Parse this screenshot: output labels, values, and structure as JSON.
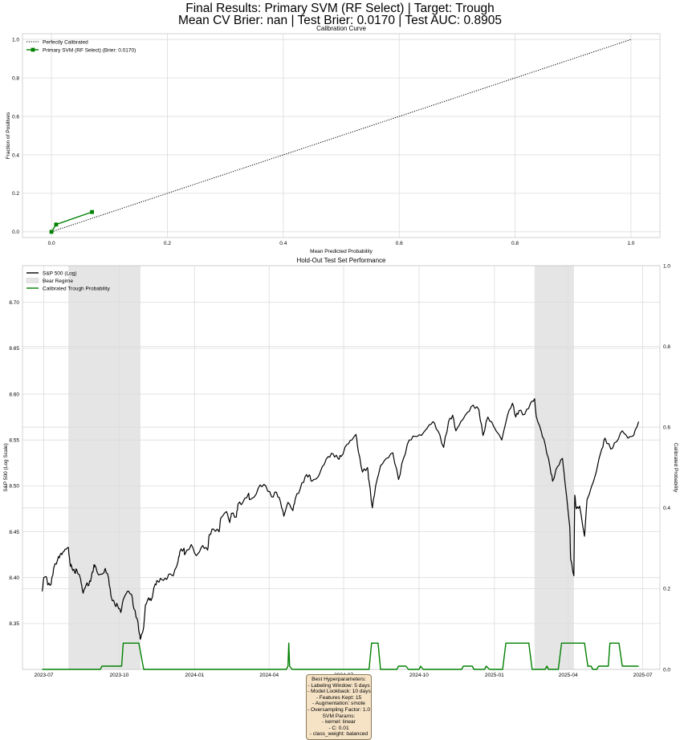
{
  "suptitle": {
    "line1": "Final Results: Primary SVM (RF Select) | Target: Trough",
    "line2": "Mean CV Brier: nan | Test Brier: 0.0170 | Test AUC: 0.8905"
  },
  "colors": {
    "green": "#008000",
    "bear": "#e5e5e5",
    "grid": "#dcdcdc",
    "box": "#f6e3c6"
  },
  "hyperparams": [
    "Best Hyperparameters:",
    "- Labeling Window: 5 days",
    "- Model Lookback: 10 days",
    "- Features Kept: 15",
    "- Augmentation: smote",
    "- Oversampling Factor: 1.0",
    "SVM Params:",
    "- kernel: linear",
    "- C: 0.01",
    "- class_weight: balanced"
  ],
  "chart_data": [
    {
      "type": "line",
      "title": "Calibration Curve",
      "xlabel": "Mean Predicted Probability",
      "ylabel": "Fraction of Positives",
      "xlim": [
        -0.05,
        1.05
      ],
      "ylim": [
        -0.03,
        1.03
      ],
      "xticks": [
        "0.0",
        "0.2",
        "0.4",
        "0.6",
        "0.8",
        "1.0"
      ],
      "yticks": [
        "0.0",
        "0.2",
        "0.4",
        "0.6",
        "0.8",
        "1.0"
      ],
      "grid": true,
      "legend_loc": "upper-left",
      "series": [
        {
          "name": "Perfectly Calibrated",
          "style": "dotted",
          "color": "#000000",
          "x": [
            0,
            1
          ],
          "y": [
            0,
            1
          ]
        },
        {
          "name": "Primary SVM (RF Select) (Brier: 0.0170)",
          "style": "solid-square",
          "color": "#008000",
          "x": [
            0.0,
            0.008,
            0.07
          ],
          "y": [
            0.0,
            0.038,
            0.103
          ]
        }
      ]
    },
    {
      "type": "line",
      "title": "Hold-Out Test Set Performance",
      "ylabel": "S&P 500 (Log Scale)",
      "y2label": "Calibrated Probability",
      "ylim": [
        8.3,
        8.74
      ],
      "y2lim": [
        0,
        1
      ],
      "yticks": [
        "8.35",
        "8.40",
        "8.45",
        "8.50",
        "8.55",
        "8.60",
        "8.65",
        "8.70"
      ],
      "y2ticks": [
        "0.0",
        "0.2",
        "0.4",
        "0.6",
        "0.8",
        "1.0"
      ],
      "xticks": [
        "2023-07",
        "2023-10",
        "2024-01",
        "2024-04",
        "2024-07",
        "2024-10",
        "2025-01",
        "2025-04",
        "2025-07"
      ],
      "grid": true,
      "legend_loc": "upper-left",
      "legend": [
        {
          "name": "S&P 500 (Log)",
          "kind": "line",
          "color": "#000000"
        },
        {
          "name": "Bear Regime",
          "kind": "patch",
          "color": "#e5e5e5"
        },
        {
          "name": "Calibrated Trough Probability",
          "kind": "line",
          "color": "#008000"
        }
      ],
      "bear_regimes": [
        [
          "2023-07-31",
          "2023-10-27"
        ],
        [
          "2025-02-19",
          "2025-04-08"
        ]
      ],
      "sp500_log": [
        [
          "2023-06-29",
          8.385
        ],
        [
          "2023-07-01",
          8.4
        ],
        [
          "2023-07-04",
          8.401
        ],
        [
          "2023-07-06",
          8.392
        ],
        [
          "2023-07-10",
          8.393
        ],
        [
          "2023-07-13",
          8.41
        ],
        [
          "2023-07-18",
          8.42
        ],
        [
          "2023-07-21",
          8.425
        ],
        [
          "2023-07-24",
          8.427
        ],
        [
          "2023-07-27",
          8.431
        ],
        [
          "2023-07-31",
          8.433
        ],
        [
          "2023-08-02",
          8.415
        ],
        [
          "2023-08-04",
          8.412
        ],
        [
          "2023-08-08",
          8.405
        ],
        [
          "2023-08-10",
          8.409
        ],
        [
          "2023-08-15",
          8.398
        ],
        [
          "2023-08-17",
          8.387
        ],
        [
          "2023-08-18",
          8.383
        ],
        [
          "2023-08-22",
          8.393
        ],
        [
          "2023-08-25",
          8.392
        ],
        [
          "2023-08-28",
          8.4
        ],
        [
          "2023-08-31",
          8.412
        ],
        [
          "2023-09-01",
          8.414
        ],
        [
          "2023-09-06",
          8.403
        ],
        [
          "2023-09-12",
          8.405
        ],
        [
          "2023-09-14",
          8.41
        ],
        [
          "2023-09-18",
          8.4
        ],
        [
          "2023-09-21",
          8.38
        ],
        [
          "2023-09-26",
          8.37
        ],
        [
          "2023-09-29",
          8.37
        ],
        [
          "2023-10-03",
          8.362
        ],
        [
          "2023-10-06",
          8.376
        ],
        [
          "2023-10-11",
          8.385
        ],
        [
          "2023-10-16",
          8.382
        ],
        [
          "2023-10-19",
          8.366
        ],
        [
          "2023-10-23",
          8.355
        ],
        [
          "2023-10-26",
          8.338
        ],
        [
          "2023-10-27",
          8.333
        ],
        [
          "2023-10-31",
          8.346
        ],
        [
          "2023-11-02",
          8.37
        ],
        [
          "2023-11-06",
          8.378
        ],
        [
          "2023-11-09",
          8.375
        ],
        [
          "2023-11-14",
          8.393
        ],
        [
          "2023-11-17",
          8.396
        ],
        [
          "2023-11-22",
          8.398
        ],
        [
          "2023-11-28",
          8.398
        ],
        [
          "2023-12-01",
          8.404
        ],
        [
          "2023-12-06",
          8.402
        ],
        [
          "2023-12-12",
          8.418
        ],
        [
          "2023-12-14",
          8.428
        ],
        [
          "2023-12-19",
          8.432
        ],
        [
          "2023-12-20",
          8.425
        ],
        [
          "2023-12-28",
          8.436
        ],
        [
          "2024-01-03",
          8.424
        ],
        [
          "2024-01-05",
          8.426
        ],
        [
          "2024-01-11",
          8.435
        ],
        [
          "2024-01-17",
          8.43
        ],
        [
          "2024-01-19",
          8.447
        ],
        [
          "2024-01-24",
          8.453
        ],
        [
          "2024-01-31",
          8.45
        ],
        [
          "2024-02-02",
          8.465
        ],
        [
          "2024-02-09",
          8.472
        ],
        [
          "2024-02-13",
          8.46
        ],
        [
          "2024-02-15",
          8.47
        ],
        [
          "2024-02-21",
          8.466
        ],
        [
          "2024-02-23",
          8.48
        ],
        [
          "2024-02-29",
          8.482
        ],
        [
          "2024-03-07",
          8.492
        ],
        [
          "2024-03-08",
          8.485
        ],
        [
          "2024-03-14",
          8.488
        ],
        [
          "2024-03-21",
          8.501
        ],
        [
          "2024-03-28",
          8.5
        ],
        [
          "2024-04-04",
          8.488
        ],
        [
          "2024-04-10",
          8.493
        ],
        [
          "2024-04-15",
          8.482
        ],
        [
          "2024-04-19",
          8.467
        ],
        [
          "2024-04-24",
          8.482
        ],
        [
          "2024-04-30",
          8.473
        ],
        [
          "2024-05-03",
          8.486
        ],
        [
          "2024-05-09",
          8.497
        ],
        [
          "2024-05-15",
          8.51
        ],
        [
          "2024-05-20",
          8.512
        ],
        [
          "2024-05-23",
          8.505
        ],
        [
          "2024-05-31",
          8.51
        ],
        [
          "2024-06-05",
          8.521
        ],
        [
          "2024-06-12",
          8.532
        ],
        [
          "2024-06-18",
          8.535
        ],
        [
          "2024-06-24",
          8.53
        ],
        [
          "2024-06-28",
          8.532
        ],
        [
          "2024-07-05",
          8.545
        ],
        [
          "2024-07-11",
          8.55
        ],
        [
          "2024-07-16",
          8.556
        ],
        [
          "2024-07-19",
          8.537
        ],
        [
          "2024-07-24",
          8.515
        ],
        [
          "2024-07-30",
          8.52
        ],
        [
          "2024-08-01",
          8.505
        ],
        [
          "2024-08-05",
          8.476
        ],
        [
          "2024-08-09",
          8.5
        ],
        [
          "2024-08-15",
          8.522
        ],
        [
          "2024-08-22",
          8.53
        ],
        [
          "2024-08-30",
          8.536
        ],
        [
          "2024-09-06",
          8.507
        ],
        [
          "2024-09-12",
          8.53
        ],
        [
          "2024-09-19",
          8.55
        ],
        [
          "2024-09-26",
          8.554
        ],
        [
          "2024-10-04",
          8.555
        ],
        [
          "2024-10-11",
          8.563
        ],
        [
          "2024-10-18",
          8.57
        ],
        [
          "2024-10-24",
          8.56
        ],
        [
          "2024-10-31",
          8.542
        ],
        [
          "2024-11-06",
          8.57
        ],
        [
          "2024-11-11",
          8.577
        ],
        [
          "2024-11-15",
          8.56
        ],
        [
          "2024-11-21",
          8.57
        ],
        [
          "2024-11-29",
          8.58
        ],
        [
          "2024-12-06",
          8.588
        ],
        [
          "2024-12-13",
          8.583
        ],
        [
          "2024-12-18",
          8.555
        ],
        [
          "2024-12-24",
          8.575
        ],
        [
          "2024-12-31",
          8.565
        ],
        [
          "2025-01-10",
          8.55
        ],
        [
          "2025-01-17",
          8.577
        ],
        [
          "2025-01-23",
          8.59
        ],
        [
          "2025-01-27",
          8.575
        ],
        [
          "2025-01-31",
          8.582
        ],
        [
          "2025-02-07",
          8.578
        ],
        [
          "2025-02-14",
          8.59
        ],
        [
          "2025-02-19",
          8.595
        ],
        [
          "2025-02-21",
          8.576
        ],
        [
          "2025-02-27",
          8.56
        ],
        [
          "2025-03-04",
          8.545
        ],
        [
          "2025-03-10",
          8.52
        ],
        [
          "2025-03-13",
          8.505
        ],
        [
          "2025-03-19",
          8.521
        ],
        [
          "2025-03-25",
          8.53
        ],
        [
          "2025-03-28",
          8.505
        ],
        [
          "2025-04-03",
          8.455
        ],
        [
          "2025-04-04",
          8.42
        ],
        [
          "2025-04-08",
          8.402
        ],
        [
          "2025-04-09",
          8.49
        ],
        [
          "2025-04-11",
          8.475
        ],
        [
          "2025-04-15",
          8.478
        ],
        [
          "2025-04-21",
          8.445
        ],
        [
          "2025-04-24",
          8.485
        ],
        [
          "2025-05-02",
          8.505
        ],
        [
          "2025-05-12",
          8.54
        ],
        [
          "2025-05-16",
          8.552
        ],
        [
          "2025-05-23",
          8.54
        ],
        [
          "2025-05-30",
          8.548
        ],
        [
          "2025-06-06",
          8.56
        ],
        [
          "2025-06-13",
          8.552
        ],
        [
          "2025-06-20",
          8.555
        ],
        [
          "2025-06-26",
          8.57
        ]
      ],
      "trough_probability": [
        [
          "2023-06-29",
          0.0
        ],
        [
          "2023-09-08",
          0.0
        ],
        [
          "2023-09-10",
          0.008
        ],
        [
          "2023-10-04",
          0.008
        ],
        [
          "2023-10-06",
          0.065
        ],
        [
          "2023-10-25",
          0.065
        ],
        [
          "2023-10-31",
          0.0
        ],
        [
          "2024-04-22",
          0.0
        ],
        [
          "2024-04-24",
          0.008
        ],
        [
          "2024-04-25",
          0.065
        ],
        [
          "2024-04-26",
          0.008
        ],
        [
          "2024-04-29",
          0.0
        ],
        [
          "2024-08-01",
          0.0
        ],
        [
          "2024-08-04",
          0.065
        ],
        [
          "2024-08-12",
          0.065
        ],
        [
          "2024-08-15",
          0.0
        ],
        [
          "2024-09-04",
          0.0
        ],
        [
          "2024-09-06",
          0.008
        ],
        [
          "2024-09-15",
          0.008
        ],
        [
          "2024-09-18",
          0.0
        ],
        [
          "2024-10-01",
          0.0
        ],
        [
          "2024-10-03",
          0.008
        ],
        [
          "2024-10-06",
          0.0
        ],
        [
          "2024-11-22",
          0.0
        ],
        [
          "2024-11-24",
          0.008
        ],
        [
          "2024-12-05",
          0.008
        ],
        [
          "2024-12-07",
          0.0
        ],
        [
          "2024-12-20",
          0.0
        ],
        [
          "2024-12-22",
          0.008
        ],
        [
          "2024-12-26",
          0.0
        ],
        [
          "2025-01-11",
          0.0
        ],
        [
          "2025-01-15",
          0.065
        ],
        [
          "2025-02-12",
          0.065
        ],
        [
          "2025-02-16",
          0.0
        ],
        [
          "2025-03-04",
          0.0
        ],
        [
          "2025-03-06",
          0.008
        ],
        [
          "2025-03-08",
          0.0
        ],
        [
          "2025-03-20",
          0.0
        ],
        [
          "2025-03-24",
          0.065
        ],
        [
          "2025-04-21",
          0.065
        ],
        [
          "2025-04-25",
          0.008
        ],
        [
          "2025-04-29",
          0.008
        ],
        [
          "2025-05-01",
          0.0
        ],
        [
          "2025-05-06",
          0.0
        ],
        [
          "2025-05-08",
          0.008
        ],
        [
          "2025-05-20",
          0.008
        ],
        [
          "2025-05-22",
          0.065
        ],
        [
          "2025-06-02",
          0.065
        ],
        [
          "2025-06-06",
          0.008
        ],
        [
          "2025-06-26",
          0.008
        ]
      ]
    }
  ]
}
